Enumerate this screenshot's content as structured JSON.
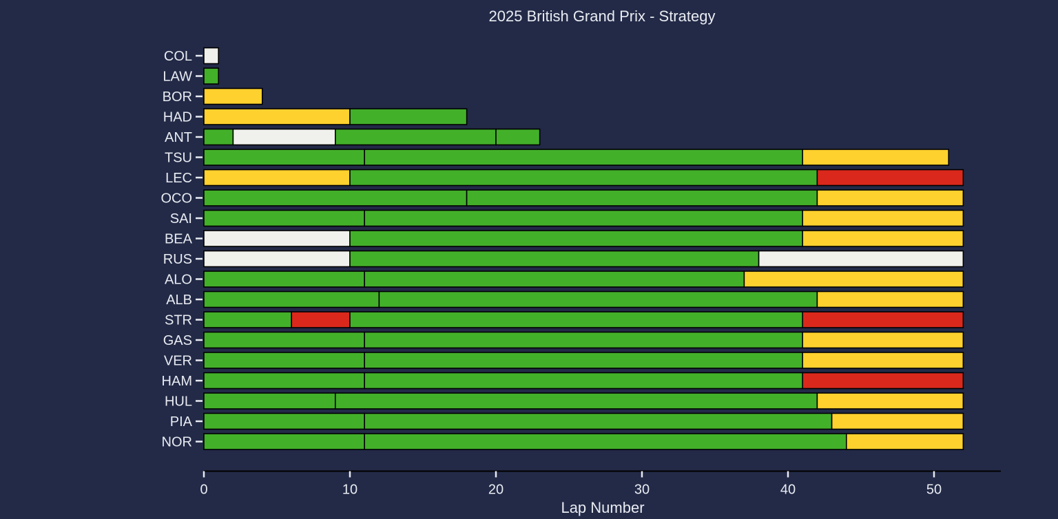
{
  "chart_data": {
    "type": "bar",
    "orientation": "horizontal-stacked",
    "title": "2025 British Grand Prix - Strategy",
    "xlabel": "Lap Number",
    "ylabel": "",
    "xlim": [
      0,
      54.5
    ],
    "xticks": [
      0,
      10,
      20,
      30,
      40,
      50
    ],
    "grid": false,
    "legend": "none",
    "compound_colors": {
      "SOFT": "#da291c",
      "MEDIUM": "#ffd12e",
      "HARD": "#f0f0ec",
      "INTERMEDIATE": "#43b02a"
    },
    "drivers": [
      {
        "driver": "COL",
        "stints": [
          {
            "compound": "HARD",
            "start": 0,
            "end": 1
          }
        ]
      },
      {
        "driver": "LAW",
        "stints": [
          {
            "compound": "INTERMEDIATE",
            "start": 0,
            "end": 1
          }
        ]
      },
      {
        "driver": "BOR",
        "stints": [
          {
            "compound": "MEDIUM",
            "start": 0,
            "end": 4
          }
        ]
      },
      {
        "driver": "HAD",
        "stints": [
          {
            "compound": "MEDIUM",
            "start": 0,
            "end": 10
          },
          {
            "compound": "INTERMEDIATE",
            "start": 10,
            "end": 18
          }
        ]
      },
      {
        "driver": "ANT",
        "stints": [
          {
            "compound": "INTERMEDIATE",
            "start": 0,
            "end": 2
          },
          {
            "compound": "HARD",
            "start": 2,
            "end": 9
          },
          {
            "compound": "INTERMEDIATE",
            "start": 9,
            "end": 20
          },
          {
            "compound": "INTERMEDIATE",
            "start": 20,
            "end": 23
          }
        ]
      },
      {
        "driver": "TSU",
        "stints": [
          {
            "compound": "INTERMEDIATE",
            "start": 0,
            "end": 11
          },
          {
            "compound": "INTERMEDIATE",
            "start": 11,
            "end": 41
          },
          {
            "compound": "MEDIUM",
            "start": 41,
            "end": 51
          }
        ]
      },
      {
        "driver": "LEC",
        "stints": [
          {
            "compound": "MEDIUM",
            "start": 0,
            "end": 10
          },
          {
            "compound": "INTERMEDIATE",
            "start": 10,
            "end": 42
          },
          {
            "compound": "SOFT",
            "start": 42,
            "end": 52
          }
        ]
      },
      {
        "driver": "OCO",
        "stints": [
          {
            "compound": "INTERMEDIATE",
            "start": 0,
            "end": 18
          },
          {
            "compound": "INTERMEDIATE",
            "start": 18,
            "end": 42
          },
          {
            "compound": "MEDIUM",
            "start": 42,
            "end": 52
          }
        ]
      },
      {
        "driver": "SAI",
        "stints": [
          {
            "compound": "INTERMEDIATE",
            "start": 0,
            "end": 11
          },
          {
            "compound": "INTERMEDIATE",
            "start": 11,
            "end": 41
          },
          {
            "compound": "MEDIUM",
            "start": 41,
            "end": 52
          }
        ]
      },
      {
        "driver": "BEA",
        "stints": [
          {
            "compound": "HARD",
            "start": 0,
            "end": 10
          },
          {
            "compound": "INTERMEDIATE",
            "start": 10,
            "end": 41
          },
          {
            "compound": "MEDIUM",
            "start": 41,
            "end": 52
          }
        ]
      },
      {
        "driver": "RUS",
        "stints": [
          {
            "compound": "HARD",
            "start": 0,
            "end": 10
          },
          {
            "compound": "INTERMEDIATE",
            "start": 10,
            "end": 38
          },
          {
            "compound": "HARD",
            "start": 38,
            "end": 52
          }
        ]
      },
      {
        "driver": "ALO",
        "stints": [
          {
            "compound": "INTERMEDIATE",
            "start": 0,
            "end": 11
          },
          {
            "compound": "INTERMEDIATE",
            "start": 11,
            "end": 37
          },
          {
            "compound": "MEDIUM",
            "start": 37,
            "end": 52
          }
        ]
      },
      {
        "driver": "ALB",
        "stints": [
          {
            "compound": "INTERMEDIATE",
            "start": 0,
            "end": 12
          },
          {
            "compound": "INTERMEDIATE",
            "start": 12,
            "end": 42
          },
          {
            "compound": "MEDIUM",
            "start": 42,
            "end": 52
          }
        ]
      },
      {
        "driver": "STR",
        "stints": [
          {
            "compound": "INTERMEDIATE",
            "start": 0,
            "end": 6
          },
          {
            "compound": "SOFT",
            "start": 6,
            "end": 10
          },
          {
            "compound": "INTERMEDIATE",
            "start": 10,
            "end": 41
          },
          {
            "compound": "SOFT",
            "start": 41,
            "end": 52
          }
        ]
      },
      {
        "driver": "GAS",
        "stints": [
          {
            "compound": "INTERMEDIATE",
            "start": 0,
            "end": 11
          },
          {
            "compound": "INTERMEDIATE",
            "start": 11,
            "end": 41
          },
          {
            "compound": "MEDIUM",
            "start": 41,
            "end": 52
          }
        ]
      },
      {
        "driver": "VER",
        "stints": [
          {
            "compound": "INTERMEDIATE",
            "start": 0,
            "end": 11
          },
          {
            "compound": "INTERMEDIATE",
            "start": 11,
            "end": 41
          },
          {
            "compound": "MEDIUM",
            "start": 41,
            "end": 52
          }
        ]
      },
      {
        "driver": "HAM",
        "stints": [
          {
            "compound": "INTERMEDIATE",
            "start": 0,
            "end": 11
          },
          {
            "compound": "INTERMEDIATE",
            "start": 11,
            "end": 41
          },
          {
            "compound": "SOFT",
            "start": 41,
            "end": 52
          }
        ]
      },
      {
        "driver": "HUL",
        "stints": [
          {
            "compound": "INTERMEDIATE",
            "start": 0,
            "end": 9
          },
          {
            "compound": "INTERMEDIATE",
            "start": 9,
            "end": 42
          },
          {
            "compound": "MEDIUM",
            "start": 42,
            "end": 52
          }
        ]
      },
      {
        "driver": "PIA",
        "stints": [
          {
            "compound": "INTERMEDIATE",
            "start": 0,
            "end": 11
          },
          {
            "compound": "INTERMEDIATE",
            "start": 11,
            "end": 43
          },
          {
            "compound": "MEDIUM",
            "start": 43,
            "end": 52
          }
        ]
      },
      {
        "driver": "NOR",
        "stints": [
          {
            "compound": "INTERMEDIATE",
            "start": 0,
            "end": 11
          },
          {
            "compound": "INTERMEDIATE",
            "start": 11,
            "end": 44
          },
          {
            "compound": "MEDIUM",
            "start": 44,
            "end": 52
          }
        ]
      }
    ]
  },
  "theme": {
    "background": "#222a47",
    "text": "#e9ebf2",
    "bar_edge": "#000000",
    "axis_line": "#000000",
    "tick_color": "#e9ebf2"
  }
}
